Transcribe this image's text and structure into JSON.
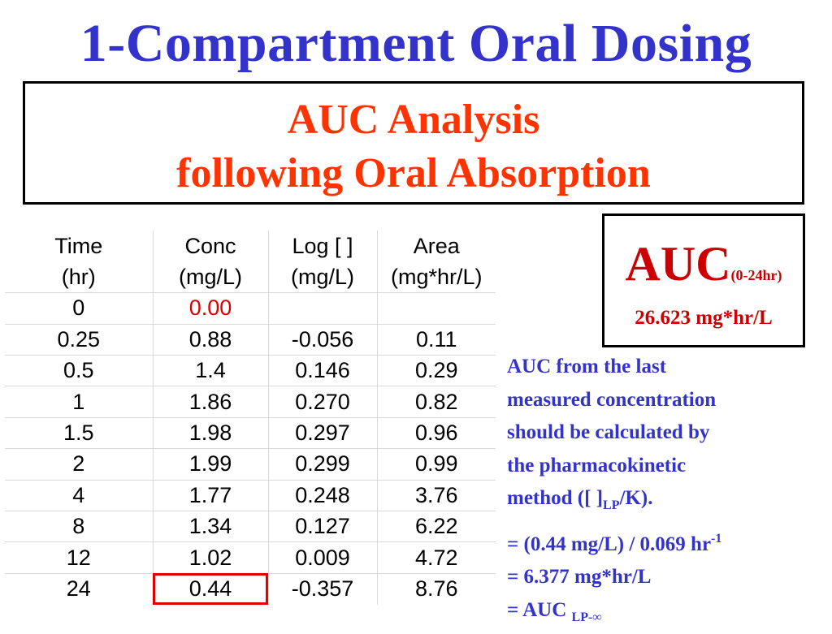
{
  "title": "1-Compartment Oral Dosing",
  "subtitle": {
    "line1": "AUC Analysis",
    "line2": "following Oral Absorption"
  },
  "auc_box": {
    "label": "AUC",
    "range": "(0-24hr)",
    "value": "26.623 mg*hr/L"
  },
  "table": {
    "headers_row1": [
      "Time",
      "Conc",
      "Log [ ]",
      "Area"
    ],
    "headers_row2": [
      "(hr)",
      "(mg/L)",
      "(mg/L)",
      "(mg*hr/L)"
    ],
    "rows": [
      [
        "0",
        "0.00",
        "",
        ""
      ],
      [
        "0.25",
        "0.88",
        "-0.056",
        "0.11"
      ],
      [
        "0.5",
        "1.4",
        "0.146",
        "0.29"
      ],
      [
        "1",
        "1.86",
        "0.270",
        "0.82"
      ],
      [
        "1.5",
        "1.98",
        "0.297",
        "0.96"
      ],
      [
        "2",
        "1.99",
        "0.299",
        "0.99"
      ],
      [
        "4",
        "1.77",
        "0.248",
        "3.76"
      ],
      [
        "8",
        "1.34",
        "0.127",
        "6.22"
      ],
      [
        "12",
        "1.02",
        "0.009",
        "4.72"
      ],
      [
        "24",
        "0.44",
        "-0.357",
        "8.76"
      ]
    ]
  },
  "note": {
    "line1": "AUC from the last",
    "line2": "measured concentration",
    "line3": "should be calculated by",
    "line4": "the pharmacokinetic",
    "line5_pre": "method ([ ]",
    "line5_sub": "LP",
    "line5_post": "/K).",
    "line6": "= (0.44 mg/L) / 0.069 hr",
    "line6_sup": "-1",
    "line7": "= 6.377 mg*hr/L",
    "line8": "= AUC ",
    "line8_sub": "LP-∞"
  },
  "colors": {
    "title": "#3333cc",
    "subtitle": "#ff3300",
    "auc": "#cc0000",
    "note": "#3333cc",
    "highlight": "#e00000"
  }
}
